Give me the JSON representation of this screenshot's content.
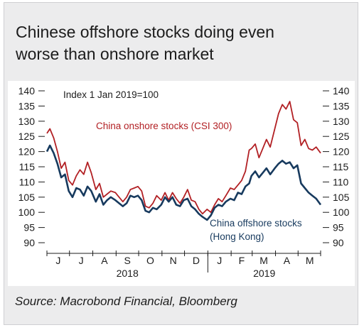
{
  "title_line1": "Chinese offshore stocks doing even",
  "title_line2": "worse than onshore market",
  "source": "Source: Macrobond Financial, Bloomberg",
  "chart_data": {
    "type": "line",
    "annotation": "Index 1 Jan 2019=100",
    "yticks": [
      140,
      135,
      130,
      125,
      120,
      115,
      110,
      105,
      100,
      95,
      90
    ],
    "ylim": [
      90,
      140
    ],
    "x_month_labels": [
      "J",
      "J",
      "A",
      "S",
      "O",
      "N",
      "D",
      "J",
      "F",
      "M",
      "A",
      "M"
    ],
    "x_year_labels": [
      "2018",
      "2019"
    ],
    "xlim": [
      "2018-06-01",
      "2019-05-31"
    ],
    "series": [
      {
        "name": "China onshore stocks (CSI 300)",
        "color": "#b22024",
        "points": [
          [
            "2018-06-01",
            126.0
          ],
          [
            "2018-06-05",
            127.5
          ],
          [
            "2018-06-10",
            124.5
          ],
          [
            "2018-06-15",
            120.0
          ],
          [
            "2018-06-20",
            114.5
          ],
          [
            "2018-06-25",
            116.5
          ],
          [
            "2018-06-30",
            110.5
          ],
          [
            "2018-07-05",
            109.0
          ],
          [
            "2018-07-10",
            112.0
          ],
          [
            "2018-07-15",
            114.0
          ],
          [
            "2018-07-20",
            112.5
          ],
          [
            "2018-07-25",
            116.5
          ],
          [
            "2018-07-30",
            113.0
          ],
          [
            "2018-08-05",
            107.5
          ],
          [
            "2018-08-10",
            109.5
          ],
          [
            "2018-08-15",
            105.0
          ],
          [
            "2018-08-20",
            106.0
          ],
          [
            "2018-08-25",
            107.0
          ],
          [
            "2018-08-31",
            106.5
          ],
          [
            "2018-09-05",
            105.0
          ],
          [
            "2018-09-10",
            103.5
          ],
          [
            "2018-09-15",
            105.0
          ],
          [
            "2018-09-20",
            107.5
          ],
          [
            "2018-09-25",
            108.0
          ],
          [
            "2018-09-30",
            108.5
          ],
          [
            "2018-10-05",
            107.0
          ],
          [
            "2018-10-10",
            102.0
          ],
          [
            "2018-10-15",
            101.5
          ],
          [
            "2018-10-20",
            103.0
          ],
          [
            "2018-10-25",
            105.5
          ],
          [
            "2018-10-31",
            104.0
          ],
          [
            "2018-11-05",
            106.5
          ],
          [
            "2018-11-10",
            104.0
          ],
          [
            "2018-11-15",
            106.5
          ],
          [
            "2018-11-20",
            104.5
          ],
          [
            "2018-11-25",
            103.0
          ],
          [
            "2018-11-30",
            105.0
          ],
          [
            "2018-12-05",
            107.5
          ],
          [
            "2018-12-10",
            104.0
          ],
          [
            "2018-12-15",
            103.5
          ],
          [
            "2018-12-20",
            101.0
          ],
          [
            "2018-12-25",
            99.5
          ],
          [
            "2018-12-31",
            101.0
          ],
          [
            "2019-01-05",
            100.0
          ],
          [
            "2019-01-10",
            102.5
          ],
          [
            "2019-01-15",
            104.5
          ],
          [
            "2019-01-20",
            103.5
          ],
          [
            "2019-01-25",
            105.5
          ],
          [
            "2019-01-31",
            108.0
          ],
          [
            "2019-02-05",
            107.5
          ],
          [
            "2019-02-10",
            109.0
          ],
          [
            "2019-02-15",
            110.5
          ],
          [
            "2019-02-20",
            113.5
          ],
          [
            "2019-02-25",
            120.5
          ],
          [
            "2019-02-28",
            121.0
          ],
          [
            "2019-03-05",
            122.5
          ],
          [
            "2019-03-10",
            118.0
          ],
          [
            "2019-03-15",
            121.0
          ],
          [
            "2019-03-20",
            124.0
          ],
          [
            "2019-03-25",
            121.5
          ],
          [
            "2019-03-31",
            127.5
          ],
          [
            "2019-04-05",
            132.5
          ],
          [
            "2019-04-10",
            135.5
          ],
          [
            "2019-04-15",
            134.0
          ],
          [
            "2019-04-20",
            136.5
          ],
          [
            "2019-04-25",
            130.5
          ],
          [
            "2019-04-30",
            129.5
          ],
          [
            "2019-05-05",
            122.0
          ],
          [
            "2019-05-10",
            124.0
          ],
          [
            "2019-05-15",
            121.0
          ],
          [
            "2019-05-20",
            120.5
          ],
          [
            "2019-05-25",
            121.5
          ],
          [
            "2019-05-31",
            119.5
          ]
        ]
      },
      {
        "name": "China offshore stocks (Hong Kong)",
        "color": "#173a5e",
        "points": [
          [
            "2018-06-01",
            120.0
          ],
          [
            "2018-06-05",
            122.0
          ],
          [
            "2018-06-10",
            119.5
          ],
          [
            "2018-06-15",
            116.0
          ],
          [
            "2018-06-20",
            111.5
          ],
          [
            "2018-06-25",
            112.5
          ],
          [
            "2018-06-30",
            107.0
          ],
          [
            "2018-07-05",
            105.0
          ],
          [
            "2018-07-10",
            108.0
          ],
          [
            "2018-07-15",
            107.5
          ],
          [
            "2018-07-20",
            105.5
          ],
          [
            "2018-07-25",
            108.5
          ],
          [
            "2018-07-30",
            107.0
          ],
          [
            "2018-08-05",
            103.5
          ],
          [
            "2018-08-10",
            106.0
          ],
          [
            "2018-08-15",
            102.5
          ],
          [
            "2018-08-20",
            104.0
          ],
          [
            "2018-08-25",
            105.0
          ],
          [
            "2018-08-31",
            104.0
          ],
          [
            "2018-09-05",
            103.0
          ],
          [
            "2018-09-10",
            102.0
          ],
          [
            "2018-09-15",
            103.0
          ],
          [
            "2018-09-20",
            105.5
          ],
          [
            "2018-09-25",
            105.0
          ],
          [
            "2018-09-30",
            105.5
          ],
          [
            "2018-10-05",
            104.0
          ],
          [
            "2018-10-10",
            100.5
          ],
          [
            "2018-10-15",
            100.0
          ],
          [
            "2018-10-20",
            101.5
          ],
          [
            "2018-10-25",
            101.0
          ],
          [
            "2018-10-31",
            102.5
          ],
          [
            "2018-11-05",
            105.0
          ],
          [
            "2018-11-10",
            103.5
          ],
          [
            "2018-11-15",
            105.0
          ],
          [
            "2018-11-20",
            102.5
          ],
          [
            "2018-11-25",
            102.0
          ],
          [
            "2018-11-30",
            104.0
          ],
          [
            "2018-12-05",
            104.5
          ],
          [
            "2018-12-10",
            102.0
          ],
          [
            "2018-12-15",
            101.0
          ],
          [
            "2018-12-20",
            99.5
          ],
          [
            "2018-12-25",
            98.5
          ],
          [
            "2018-12-31",
            97.5
          ],
          [
            "2019-01-05",
            99.0
          ],
          [
            "2019-01-10",
            101.5
          ],
          [
            "2019-01-15",
            102.5
          ],
          [
            "2019-01-20",
            102.0
          ],
          [
            "2019-01-25",
            103.5
          ],
          [
            "2019-01-31",
            104.5
          ],
          [
            "2019-02-05",
            104.0
          ],
          [
            "2019-02-10",
            106.5
          ],
          [
            "2019-02-15",
            106.0
          ],
          [
            "2019-02-20",
            108.5
          ],
          [
            "2019-02-25",
            109.5
          ],
          [
            "2019-02-28",
            112.0
          ],
          [
            "2019-03-05",
            113.5
          ],
          [
            "2019-03-10",
            111.5
          ],
          [
            "2019-03-15",
            113.0
          ],
          [
            "2019-03-20",
            114.5
          ],
          [
            "2019-03-25",
            112.5
          ],
          [
            "2019-03-31",
            114.5
          ],
          [
            "2019-04-05",
            116.0
          ],
          [
            "2019-04-10",
            117.0
          ],
          [
            "2019-04-15",
            116.0
          ],
          [
            "2019-04-20",
            116.5
          ],
          [
            "2019-04-25",
            114.5
          ],
          [
            "2019-04-30",
            115.5
          ],
          [
            "2019-05-05",
            109.5
          ],
          [
            "2019-05-10",
            108.0
          ],
          [
            "2019-05-15",
            106.5
          ],
          [
            "2019-05-20",
            105.5
          ],
          [
            "2019-05-25",
            104.5
          ],
          [
            "2019-05-31",
            102.5
          ]
        ]
      }
    ]
  }
}
